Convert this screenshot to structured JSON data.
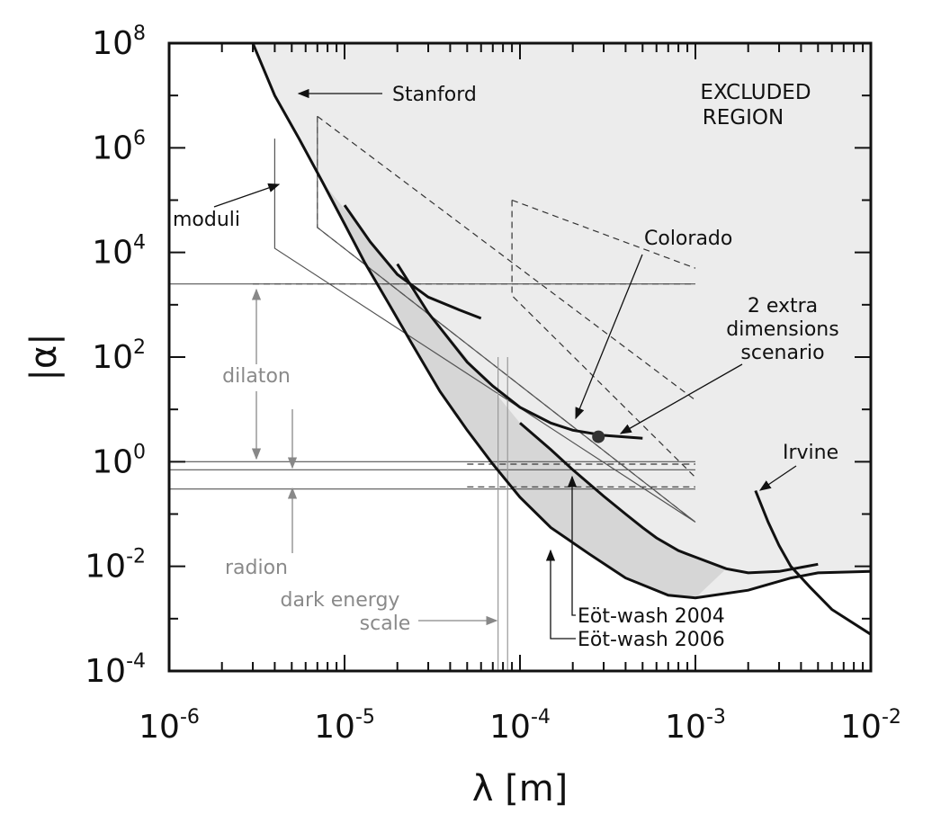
{
  "chart_data": {
    "type": "line",
    "title": "",
    "xlabel": "λ [m]",
    "ylabel": "|α|",
    "x_scale": "log",
    "y_scale": "log",
    "xlim": [
      1e-06,
      0.01
    ],
    "ylim": [
      0.0001,
      100000000.0
    ],
    "x_ticks": [
      {
        "base": "10",
        "exp": "-6",
        "value": 1e-06
      },
      {
        "base": "10",
        "exp": "-5",
        "value": 1e-05
      },
      {
        "base": "10",
        "exp": "-4",
        "value": 0.0001
      },
      {
        "base": "10",
        "exp": "-3",
        "value": 0.001
      },
      {
        "base": "10",
        "exp": "-2",
        "value": 0.01
      }
    ],
    "y_ticks": [
      {
        "base": "10",
        "exp": "-4",
        "value": 0.0001
      },
      {
        "base": "10",
        "exp": "-2",
        "value": 0.01
      },
      {
        "base": "10",
        "exp": "0",
        "value": 1
      },
      {
        "base": "10",
        "exp": "2",
        "value": 100
      },
      {
        "base": "10",
        "exp": "4",
        "value": 10000.0
      },
      {
        "base": "10",
        "exp": "6",
        "value": 1000000.0
      },
      {
        "base": "10",
        "exp": "8",
        "value": 100000000.0
      }
    ],
    "region_label": [
      "EXCLUDED",
      "REGION"
    ],
    "series": [
      {
        "name": "Stanford",
        "kind": "limit-curve",
        "x": [
          3e-06,
          4e-06,
          5.5e-06,
          7.5e-06,
          1e-05,
          1.3e-05,
          1.8e-05,
          2.5e-05,
          3.5e-05,
          5e-05,
          7e-05,
          0.0001,
          0.00015,
          0.00025,
          0.0004,
          0.0007,
          0.001,
          0.002,
          0.0035,
          0.005,
          0.01
        ],
        "y": [
          100000000.0,
          10000000.0,
          1500000.0,
          220000.0,
          35000.0,
          6500.0,
          1000.0,
          150,
          22,
          4.0,
          0.9,
          0.21,
          0.055,
          0.017,
          0.006,
          0.0028,
          0.0025,
          0.0035,
          0.006,
          0.0075,
          0.008
        ]
      },
      {
        "name": "",
        "kind": "limit-curve",
        "x": [
          1e-05,
          1.4e-05,
          2e-05,
          3e-05,
          4.5e-05,
          6e-05
        ],
        "y": [
          80000.0,
          16000.0,
          3800.0,
          1400.0,
          800,
          550
        ]
      },
      {
        "name": "Colorado",
        "kind": "limit-curve",
        "x": [
          2e-05,
          3e-05,
          5e-05,
          7e-05,
          0.0001,
          0.00015,
          0.0002,
          0.0003,
          0.0005
        ],
        "y": [
          6000,
          700,
          80,
          28,
          11,
          5.5,
          4.0,
          3.2,
          2.8
        ]
      },
      {
        "name": "Eöt-wash 2004",
        "kind": "limit-curve",
        "x": [
          0.0001,
          0.00015,
          0.0002,
          0.0003,
          0.0004,
          0.0005,
          0.0006,
          0.0008,
          0.001,
          0.0015,
          0.002,
          0.003,
          0.005
        ],
        "y": [
          5.5,
          1.7,
          0.7,
          0.22,
          0.1,
          0.055,
          0.035,
          0.02,
          0.015,
          0.009,
          0.0075,
          0.008,
          0.011
        ]
      },
      {
        "name": "Irvine",
        "kind": "limit-curve",
        "x": [
          0.0022,
          0.0026,
          0.003,
          0.0035,
          0.0045,
          0.006,
          0.01
        ],
        "y": [
          0.28,
          0.07,
          0.025,
          0.01,
          0.004,
          0.0015,
          0.0005
        ]
      }
    ],
    "projections": [
      {
        "x": [
          7e-06,
          7e-06,
          0.001
        ],
        "y": [
          4000000.0,
          30000.0,
          0.07
        ]
      },
      {
        "x": [
          7e-06,
          0.001
        ],
        "y": [
          4000000.0,
          15
        ]
      },
      {
        "x": [
          9e-05,
          9e-05,
          0.001
        ],
        "y": [
          100000.0,
          1500.0,
          0.5
        ]
      },
      {
        "x": [
          9e-05,
          0.001
        ],
        "y": [
          100000.0,
          5000
        ]
      },
      {
        "x": [
          3e-06,
          0.001
        ],
        "y": [
          2500,
          2500
        ]
      },
      {
        "x": [
          5e-05,
          0.001
        ],
        "y": [
          0.9,
          0.9
        ]
      },
      {
        "x": [
          5e-05,
          0.001
        ],
        "y": [
          0.33,
          0.33
        ]
      }
    ],
    "moduli_box": {
      "x": [
        4e-06,
        4e-06,
        0.001,
        7e-06,
        7e-06
      ],
      "y": [
        1500000.0,
        12000.0,
        0.07,
        30000.0,
        4000000.0
      ]
    },
    "bounds": [
      {
        "x": [
          1e-06,
          0.001
        ],
        "y": [
          2500,
          2500
        ]
      },
      {
        "x": [
          1e-06,
          0.001
        ],
        "y": [
          1.0,
          1.0
        ]
      },
      {
        "x": [
          1e-06,
          0.001
        ],
        "y": [
          0.7,
          0.7
        ]
      },
      {
        "x": [
          1e-06,
          0.001
        ],
        "y": [
          0.3,
          0.3
        ]
      }
    ],
    "dark_energy_lines": [
      7.5e-05,
      8.5e-05
    ],
    "prediction_point": {
      "x": 0.00028,
      "y": 3.0
    },
    "annotations": {
      "stanford": "Stanford",
      "moduli": "moduli",
      "colorado": "Colorado",
      "extra_dimensions": [
        "2 extra",
        "dimensions",
        "scenario"
      ],
      "dilaton": "dilaton",
      "radion": "radion",
      "dark_energy": [
        "dark energy",
        "scale"
      ],
      "irvine": "Irvine",
      "eotwash_2004": "Eöt-wash 2004",
      "eotwash_2006": "Eöt-wash 2006"
    },
    "grid": false,
    "legend": "none"
  }
}
